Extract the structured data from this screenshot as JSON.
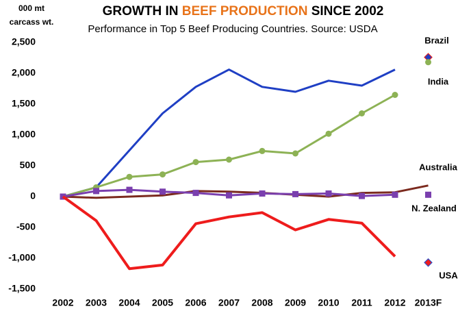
{
  "chart_data": {
    "type": "line",
    "title": [
      "GROWTH IN ",
      "BEEF PRODUCTION",
      " SINCE 2002"
    ],
    "title_highlight_color": "#e8731a",
    "subtitle": "Performance in Top 5 Beef Producing Countries. Source: USDA",
    "ylabel": [
      "000 mt",
      "carcass wt."
    ],
    "categories": [
      "2002",
      "2003",
      "2004",
      "2005",
      "2006",
      "2007",
      "2008",
      "2009",
      "2010",
      "2011",
      "2012",
      "2013F"
    ],
    "ylim": [
      -1500,
      2500
    ],
    "yticks": [
      {
        "value": 2500,
        "label": "2,500"
      },
      {
        "value": 2000,
        "label": "2,000"
      },
      {
        "value": 1500,
        "label": "1,500"
      },
      {
        "value": 1000,
        "label": "1,000"
      },
      500,
      0,
      -500,
      {
        "value": -1000,
        "label": "-1,000"
      },
      {
        "value": -1500,
        "label": "-1,500"
      }
    ],
    "grid": false,
    "series": [
      {
        "name": "Brazil",
        "color": "#1f3fc4",
        "label_color": "#2f4dbf",
        "marker": "none",
        "forecast_marker": "diamond",
        "connect_forecast": false,
        "values": [
          0,
          150,
          750,
          1350,
          1780,
          2060,
          1780,
          1700,
          1880,
          1800,
          2060,
          2260
        ]
      },
      {
        "name": "India",
        "color": "#8db255",
        "label_color": "#2f8a2f",
        "marker": "circle",
        "forecast_marker": "circle",
        "connect_forecast": false,
        "values": [
          0,
          150,
          320,
          360,
          560,
          600,
          740,
          700,
          1020,
          1350,
          1650,
          2180
        ]
      },
      {
        "name": "Australia",
        "color": "#7b2a1e",
        "label_color": "#8b2e20",
        "marker": "none",
        "forecast_marker": "none",
        "connect_forecast": true,
        "values": [
          0,
          -20,
          0,
          20,
          90,
          80,
          60,
          30,
          0,
          60,
          70,
          180
        ]
      },
      {
        "name": "N. Zealand",
        "color": "#7a3fae",
        "label_color": "#7030a0",
        "marker": "square",
        "forecast_marker": "square",
        "connect_forecast": false,
        "values": [
          0,
          90,
          110,
          80,
          60,
          20,
          50,
          40,
          50,
          10,
          30,
          30
        ]
      },
      {
        "name": "USA",
        "color": "#ee1c1c",
        "label_color": "#e01010",
        "marker": "none",
        "forecast_marker": "diamond",
        "connect_forecast": false,
        "values": [
          0,
          -390,
          -1170,
          -1110,
          -440,
          -330,
          -260,
          -540,
          -370,
          -430,
          -970,
          -1070
        ]
      }
    ]
  }
}
